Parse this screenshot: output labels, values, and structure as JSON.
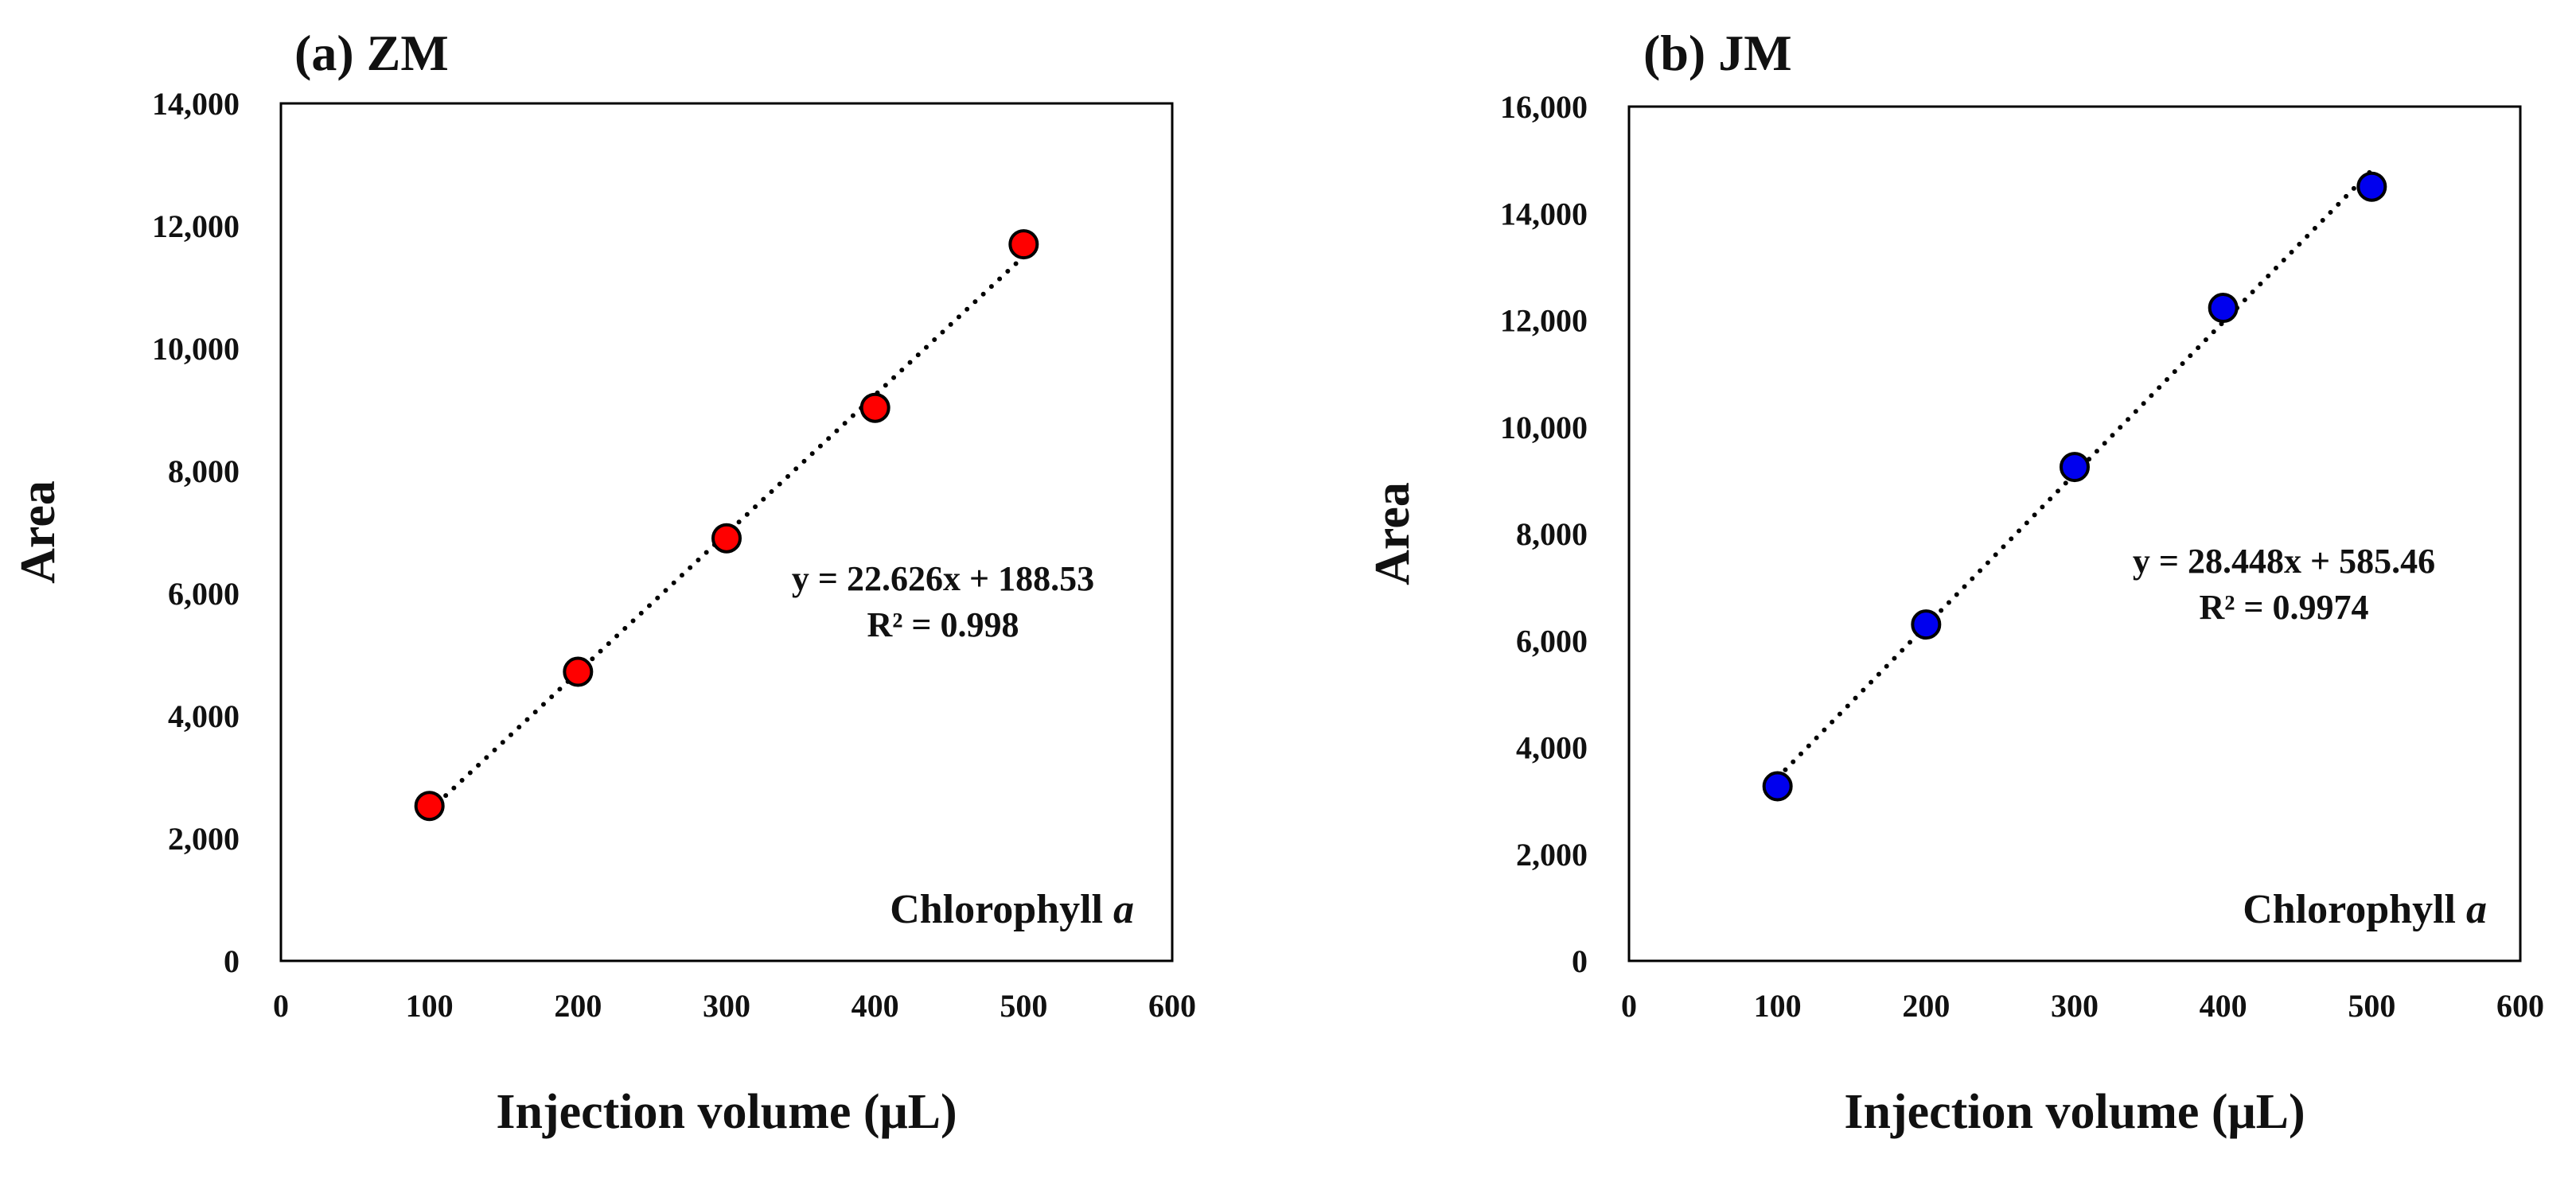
{
  "figure": {
    "panels": 2
  },
  "chart_data": [
    {
      "type": "scatter",
      "title": "(a) ZM",
      "xlabel": "Injection volume (μL)",
      "ylabel": "Area",
      "xlim": [
        0,
        600
      ],
      "ylim": [
        0,
        14000
      ],
      "x_ticks": [
        0,
        100,
        200,
        300,
        400,
        500,
        600
      ],
      "y_ticks": [
        0,
        2000,
        4000,
        6000,
        8000,
        10000,
        12000,
        14000
      ],
      "x_tick_labels": [
        "0",
        "100",
        "200",
        "300",
        "400",
        "500",
        "600"
      ],
      "y_tick_labels": [
        "0",
        "2,000",
        "4,000",
        "6,000",
        "8,000",
        "10,000",
        "12,000",
        "14,000"
      ],
      "series": [
        {
          "name": "ZM",
          "color": "#ff0000",
          "x": [
            100,
            200,
            300,
            400,
            500
          ],
          "y": [
            2530,
            4720,
            6900,
            9030,
            11700
          ]
        }
      ],
      "trendline": {
        "slope": 22.626,
        "intercept": 188.53,
        "x_range": [
          100,
          500
        ],
        "style": "dotted",
        "equation": "y = 22.626x + 188.53",
        "r_squared": "R² = 0.998"
      },
      "annotation": {
        "text": "Chlorophyll ",
        "italic": "a"
      },
      "grid": false
    },
    {
      "type": "scatter",
      "title": "(b) JM",
      "xlabel": "Injection volume (μL)",
      "ylabel": "Area",
      "xlim": [
        0,
        600
      ],
      "ylim": [
        0,
        16000
      ],
      "x_ticks": [
        0,
        100,
        200,
        300,
        400,
        500,
        600
      ],
      "y_ticks": [
        0,
        2000,
        4000,
        6000,
        8000,
        10000,
        12000,
        14000,
        16000
      ],
      "x_tick_labels": [
        "0",
        "100",
        "200",
        "300",
        "400",
        "500",
        "600"
      ],
      "y_tick_labels": [
        "0",
        "2,000",
        "4,000",
        "6,000",
        "8,000",
        "10,000",
        "12,000",
        "14,000",
        "16,000"
      ],
      "series": [
        {
          "name": "JM",
          "color": "#0000ee",
          "x": [
            100,
            200,
            300,
            400,
            500
          ],
          "y": [
            3270,
            6300,
            9250,
            12230,
            14500
          ]
        }
      ],
      "trendline": {
        "slope": 28.448,
        "intercept": 585.46,
        "x_range": [
          100,
          500
        ],
        "style": "dotted",
        "equation": "y = 28.448x + 585.46",
        "r_squared": "R² = 0.9974"
      },
      "annotation": {
        "text": "Chlorophyll ",
        "italic": "a"
      },
      "grid": false
    }
  ]
}
